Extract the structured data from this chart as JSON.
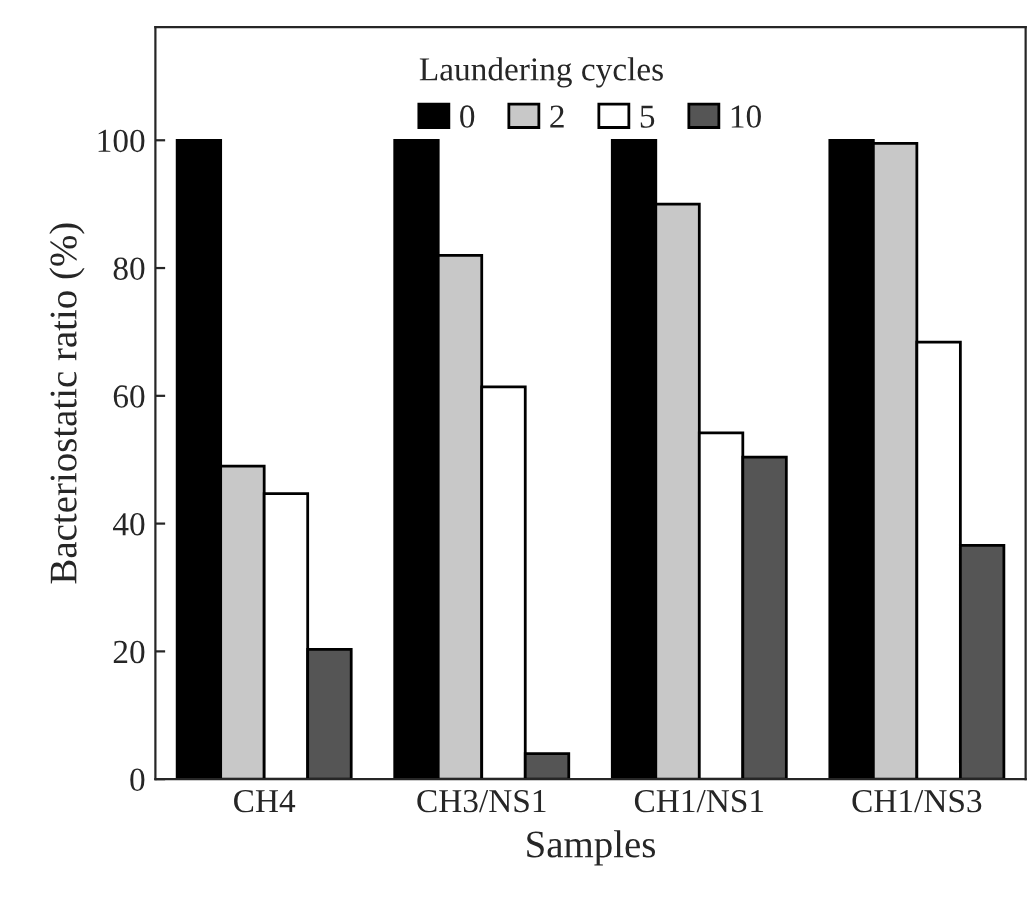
{
  "chart_data": {
    "type": "bar",
    "xlabel": "Samples",
    "ylabel": "Bacteriostatic ratio (%)",
    "legend_title": "Laundering cycles",
    "categories": [
      "CH4",
      "CH3/NS1",
      "CH1/NS1",
      "CH1/NS3"
    ],
    "series": [
      {
        "name": "0",
        "color": "#000000",
        "values": [
          100,
          100,
          100,
          100
        ]
      },
      {
        "name": "2",
        "color": "#c8c8c8",
        "values": [
          49,
          82,
          90,
          99.5
        ]
      },
      {
        "name": "5",
        "color": "#ffffff",
        "values": [
          44.7,
          61.4,
          54.2,
          68.4
        ]
      },
      {
        "name": "10",
        "color": "#555555",
        "values": [
          20.3,
          4,
          50.4,
          36.6
        ]
      }
    ],
    "ylim": [
      0,
      117.7
    ],
    "yticks": [
      0,
      20,
      40,
      60,
      80,
      100
    ],
    "grid": false,
    "legend": "top"
  }
}
